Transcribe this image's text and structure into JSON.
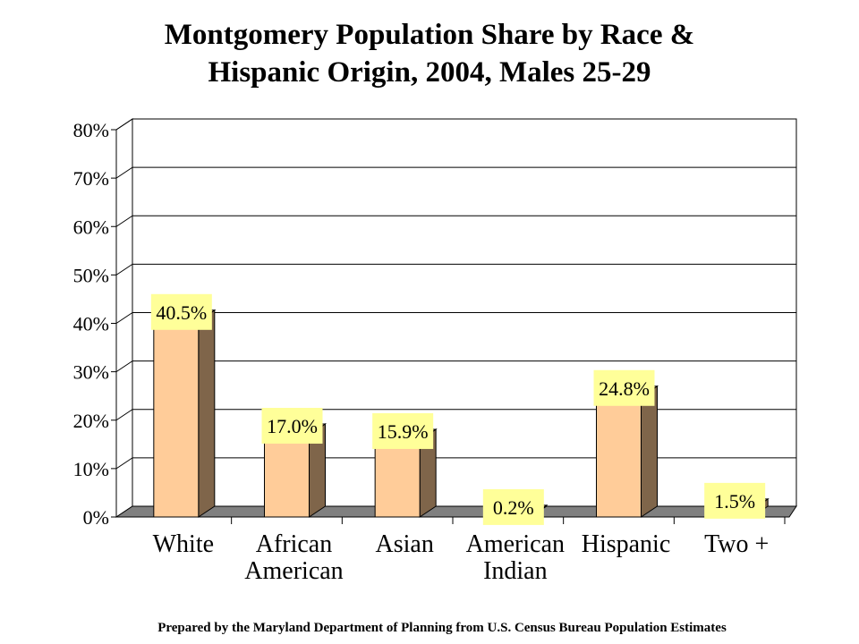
{
  "title": {
    "line1": "Montgomery Population Share by Race &",
    "line2": "Hispanic Origin, 2004, Males 25-29"
  },
  "footer": "Prepared by the Maryland Department of Planning from U.S. Census Bureau Population Estimates",
  "colors": {
    "bar_front": "#FFCC99",
    "bar_side": "#7F654A",
    "floor": "#808080",
    "label_bg": "#FFFF99",
    "grid": "#000000"
  },
  "chart_data": {
    "type": "bar",
    "title": "Montgomery Population Share by Race & Hispanic Origin, 2004, Males 25-29",
    "categories": [
      [
        "White"
      ],
      [
        "African",
        "American"
      ],
      [
        "Asian"
      ],
      [
        "American",
        "Indian"
      ],
      [
        "Hispanic"
      ],
      [
        "Two +"
      ]
    ],
    "values": [
      40.5,
      17.0,
      15.9,
      0.2,
      24.8,
      1.5
    ],
    "data_labels": [
      "40.5%",
      "17.0%",
      "15.9%",
      "0.2%",
      "24.8%",
      "1.5%"
    ],
    "yticks": [
      "0%",
      "10%",
      "20%",
      "30%",
      "40%",
      "50%",
      "60%",
      "70%",
      "80%"
    ],
    "ylim": [
      0,
      80
    ],
    "grid": true,
    "style": "3d"
  }
}
